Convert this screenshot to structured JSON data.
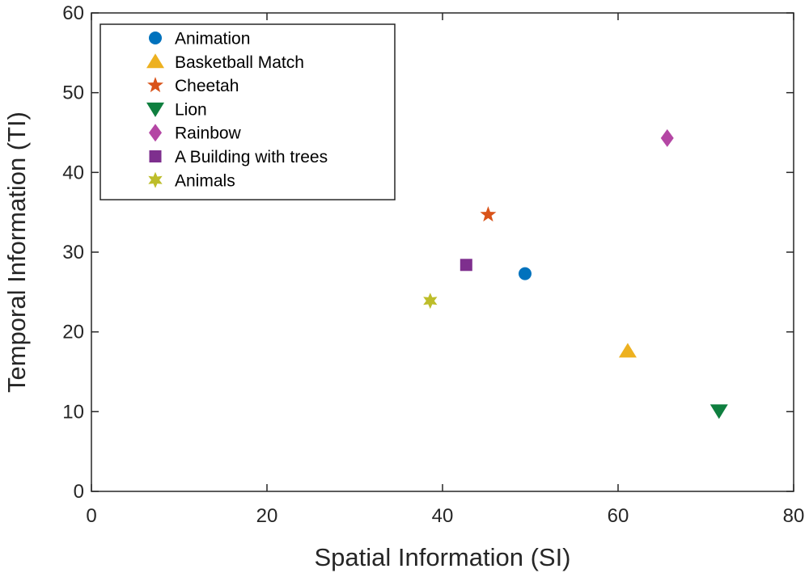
{
  "chart_data": {
    "type": "scatter",
    "xlabel": "Spatial Information (SI)",
    "ylabel": "Temporal Information (TI)",
    "xlim": [
      0,
      80
    ],
    "ylim": [
      0,
      60
    ],
    "xticks": [
      "0",
      "20",
      "40",
      "60",
      "80"
    ],
    "yticks": [
      "0",
      "10",
      "20",
      "30",
      "40",
      "50",
      "60"
    ],
    "grid": false,
    "legend_position": "top-left",
    "series": [
      {
        "name": "Animation",
        "marker": "circle",
        "color": "#0072BD",
        "x": 49.4,
        "y": 27.3
      },
      {
        "name": "Basketball Match",
        "marker": "triangle-up",
        "color": "#EDB120",
        "x": 61.1,
        "y": 17.6
      },
      {
        "name": "Cheetah",
        "marker": "star5",
        "color": "#D95319",
        "x": 45.2,
        "y": 34.7
      },
      {
        "name": "Lion",
        "marker": "triangle-down",
        "color": "#0F7F3F",
        "x": 71.5,
        "y": 10.1
      },
      {
        "name": "Rainbow",
        "marker": "diamond",
        "color": "#B446A4",
        "x": 65.6,
        "y": 44.3
      },
      {
        "name": "A Building with trees",
        "marker": "square",
        "color": "#7E2F8E",
        "x": 42.7,
        "y": 28.4
      },
      {
        "name": "Animals",
        "marker": "star6",
        "color": "#BDBD2A",
        "x": 38.6,
        "y": 23.9
      }
    ]
  }
}
